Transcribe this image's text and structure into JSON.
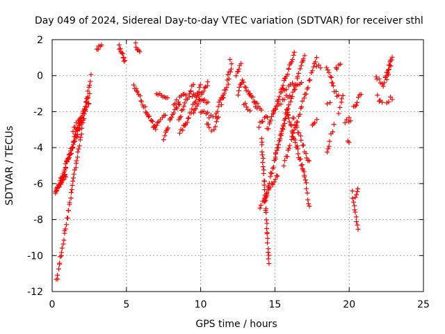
{
  "chart_data": {
    "type": "scatter",
    "title": "Day 049 of 2024, Sidereal Day-to-day VTEC variation (SDTVAR) for receiver sthl",
    "xlabel": "GPS time / hours",
    "ylabel": "SDTVAR / TECUs",
    "xlim": [
      0,
      25
    ],
    "ylim": [
      -12,
      2
    ],
    "xticks": [
      0,
      5,
      10,
      15,
      20,
      25
    ],
    "yticks": [
      -12,
      -10,
      -8,
      -6,
      -4,
      -2,
      0,
      2
    ],
    "grid": true,
    "marker": "+",
    "color": "#ff0000",
    "segments": [
      {
        "x0": 0.3,
        "y0": -11.4,
        "x1": 2.6,
        "y1": 0.0,
        "n": 55
      },
      {
        "x0": 0.2,
        "y0": -6.5,
        "x1": 0.9,
        "y1": -5.5,
        "n": 22
      },
      {
        "x0": 0.5,
        "y0": -6.0,
        "x1": 2.0,
        "y1": -2.5,
        "n": 36
      },
      {
        "x0": 0.9,
        "y0": -5.0,
        "x1": 2.5,
        "y1": -1.0,
        "n": 30
      },
      {
        "x0": 1.4,
        "y0": -3.0,
        "x1": 2.5,
        "y1": -1.6,
        "n": 14
      },
      {
        "x0": 3.0,
        "y0": 1.5,
        "x1": 3.3,
        "y1": 1.8,
        "n": 5
      },
      {
        "x0": 4.5,
        "y0": 1.6,
        "x1": 4.9,
        "y1": 0.8,
        "n": 10
      },
      {
        "x0": 5.6,
        "y0": 1.7,
        "x1": 5.9,
        "y1": 1.3,
        "n": 6
      },
      {
        "x0": 5.5,
        "y0": -0.5,
        "x1": 6.5,
        "y1": -2.3,
        "n": 16
      },
      {
        "x0": 6.5,
        "y0": -2.2,
        "x1": 7.0,
        "y1": -3.0,
        "n": 8
      },
      {
        "x0": 6.8,
        "y0": -2.8,
        "x1": 7.6,
        "y1": -2.2,
        "n": 9
      },
      {
        "x0": 7.5,
        "y0": -3.5,
        "x1": 7.8,
        "y1": -2.8,
        "n": 6
      },
      {
        "x0": 7.0,
        "y0": -1.0,
        "x1": 7.8,
        "y1": -1.2,
        "n": 8
      },
      {
        "x0": 7.9,
        "y0": -2.5,
        "x1": 8.6,
        "y1": -1.5,
        "n": 10
      },
      {
        "x0": 8.2,
        "y0": -1.6,
        "x1": 9.0,
        "y1": -1.0,
        "n": 9
      },
      {
        "x0": 8.5,
        "y0": -2.5,
        "x1": 9.5,
        "y1": -0.5,
        "n": 14
      },
      {
        "x0": 8.6,
        "y0": -3.2,
        "x1": 9.0,
        "y1": -2.6,
        "n": 6
      },
      {
        "x0": 9.0,
        "y0": -2.8,
        "x1": 10.0,
        "y1": -0.6,
        "n": 15
      },
      {
        "x0": 9.5,
        "y0": -2.0,
        "x1": 10.5,
        "y1": -0.4,
        "n": 14
      },
      {
        "x0": 9.3,
        "y0": -1.0,
        "x1": 10.5,
        "y1": -1.5,
        "n": 12
      },
      {
        "x0": 10.0,
        "y0": -2.0,
        "x1": 10.8,
        "y1": -2.3,
        "n": 8
      },
      {
        "x0": 10.4,
        "y0": -2.6,
        "x1": 10.7,
        "y1": -3.0,
        "n": 4
      },
      {
        "x0": 10.9,
        "y0": -3.0,
        "x1": 11.2,
        "y1": -2.3,
        "n": 5
      },
      {
        "x0": 11.0,
        "y0": -2.2,
        "x1": 11.6,
        "y1": -0.8,
        "n": 10
      },
      {
        "x0": 11.4,
        "y0": -1.5,
        "x1": 11.9,
        "y1": -0.2,
        "n": 8
      },
      {
        "x0": 11.8,
        "y0": -0.2,
        "x1": 12.1,
        "y1": 0.6,
        "n": 6
      },
      {
        "x0": 12.0,
        "y0": 0.9,
        "x1": 12.1,
        "y1": 0.9,
        "n": 1
      },
      {
        "x0": 12.4,
        "y0": 0.0,
        "x1": 12.7,
        "y1": 0.8,
        "n": 6
      },
      {
        "x0": 12.5,
        "y0": -1.1,
        "x1": 12.8,
        "y1": -0.2,
        "n": 6
      },
      {
        "x0": 12.8,
        "y0": -0.3,
        "x1": 13.4,
        "y1": -1.2,
        "n": 9
      },
      {
        "x0": 12.9,
        "y0": -1.5,
        "x1": 13.3,
        "y1": -2.0,
        "n": 5
      },
      {
        "x0": 13.4,
        "y0": -1.2,
        "x1": 13.8,
        "y1": -1.6,
        "n": 5
      },
      {
        "x0": 13.6,
        "y0": -1.5,
        "x1": 14.1,
        "y1": -2.0,
        "n": 6
      },
      {
        "x0": 13.9,
        "y0": -2.8,
        "x1": 14.5,
        "y1": -2.2,
        "n": 7
      },
      {
        "x0": 14.1,
        "y0": -3.5,
        "x1": 14.6,
        "y1": -10.4,
        "n": 32
      },
      {
        "x0": 14.0,
        "y0": -7.3,
        "x1": 15.2,
        "y1": -5.5,
        "n": 16
      },
      {
        "x0": 14.3,
        "y0": -7.0,
        "x1": 15.8,
        "y1": -2.0,
        "n": 28
      },
      {
        "x0": 14.5,
        "y0": -3.0,
        "x1": 16.3,
        "y1": 1.3,
        "n": 32
      },
      {
        "x0": 14.9,
        "y0": -2.0,
        "x1": 16.0,
        "y1": -1.0,
        "n": 10
      },
      {
        "x0": 15.0,
        "y0": -4.5,
        "x1": 17.0,
        "y1": 1.2,
        "n": 32
      },
      {
        "x0": 15.4,
        "y0": -0.8,
        "x1": 16.8,
        "y1": -0.3,
        "n": 12
      },
      {
        "x0": 15.6,
        "y0": -5.0,
        "x1": 17.8,
        "y1": 1.0,
        "n": 32
      },
      {
        "x0": 15.8,
        "y0": -2.0,
        "x1": 17.0,
        "y1": -5.6,
        "n": 26
      },
      {
        "x0": 16.2,
        "y0": -2.3,
        "x1": 17.3,
        "y1": -4.8,
        "n": 16
      },
      {
        "x0": 17.0,
        "y0": -5.5,
        "x1": 17.3,
        "y1": -7.3,
        "n": 8
      },
      {
        "x0": 17.5,
        "y0": -2.8,
        "x1": 17.8,
        "y1": -2.4,
        "n": 4
      },
      {
        "x0": 17.8,
        "y0": 0.5,
        "x1": 18.1,
        "y1": 0.5,
        "n": 3
      },
      {
        "x0": 18.5,
        "y0": -1.5,
        "x1": 18.7,
        "y1": -1.5,
        "n": 2
      },
      {
        "x0": 18.5,
        "y0": -4.3,
        "x1": 18.7,
        "y1": -3.7,
        "n": 4
      },
      {
        "x0": 18.5,
        "y0": 0.5,
        "x1": 18.9,
        "y1": -0.4,
        "n": 6
      },
      {
        "x0": 18.8,
        "y0": -0.5,
        "x1": 19.3,
        "y1": -1.2,
        "n": 6
      },
      {
        "x0": 18.8,
        "y0": -3.2,
        "x1": 19.0,
        "y1": -2.8,
        "n": 3
      },
      {
        "x0": 19.1,
        "y0": 0.4,
        "x1": 19.4,
        "y1": 0.6,
        "n": 4
      },
      {
        "x0": 19.3,
        "y0": -2.0,
        "x1": 19.6,
        "y1": -1.0,
        "n": 5
      },
      {
        "x0": 19.7,
        "y0": -2.5,
        "x1": 20.0,
        "y1": -2.6,
        "n": 3
      },
      {
        "x0": 19.9,
        "y0": -3.6,
        "x1": 20.0,
        "y1": -3.8,
        "n": 2
      },
      {
        "x0": 20.0,
        "y0": -2.3,
        "x1": 20.1,
        "y1": -2.5,
        "n": 2
      },
      {
        "x0": 20.2,
        "y0": -6.5,
        "x1": 20.6,
        "y1": -8.6,
        "n": 10
      },
      {
        "x0": 20.4,
        "y0": -6.8,
        "x1": 20.6,
        "y1": -6.2,
        "n": 4
      },
      {
        "x0": 20.3,
        "y0": -1.8,
        "x1": 20.8,
        "y1": -1.0,
        "n": 7
      },
      {
        "x0": 21.8,
        "y0": 0.0,
        "x1": 22.2,
        "y1": -0.4,
        "n": 5
      },
      {
        "x0": 21.9,
        "y0": -1.2,
        "x1": 22.2,
        "y1": -1.6,
        "n": 4
      },
      {
        "x0": 22.3,
        "y0": -0.5,
        "x1": 22.8,
        "y1": 0.9,
        "n": 10
      },
      {
        "x0": 22.5,
        "y0": -0.2,
        "x1": 22.9,
        "y1": 1.0,
        "n": 8
      },
      {
        "x0": 22.5,
        "y0": -1.5,
        "x1": 22.9,
        "y1": -1.2,
        "n": 4
      }
    ]
  }
}
